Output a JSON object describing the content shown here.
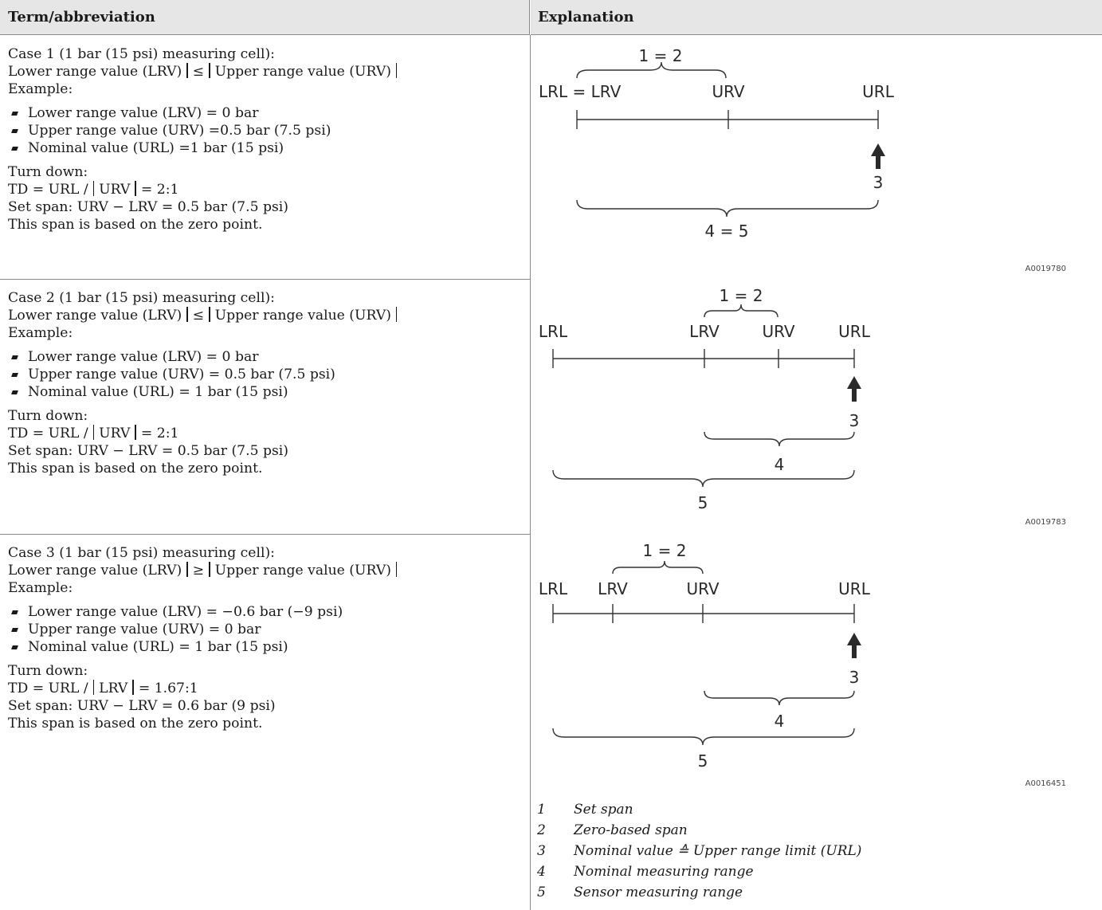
{
  "header": {
    "term_col": "Term/abbreviation",
    "explanation_col": "Explanation"
  },
  "cases": [
    {
      "title": "Case 1 (1 bar (15 psi) measuring cell):",
      "relation": {
        "left": "Lower range value (LRV)",
        "op": "≤",
        "right": "Upper range value (URV)"
      },
      "example_label": "Example:",
      "bullets": [
        "Lower range value (LRV) = 0 bar",
        "Upper range value (URV) =0.5 bar (7.5 psi)",
        "Nominal value (URL) =1 bar (15 psi)"
      ],
      "turn_down_label": "Turn down:",
      "td": {
        "prefix": "TD = URL /",
        "var": "URV",
        "suffix": "= 2:1"
      },
      "span": "Set span: URV − LRV = 0.5 bar (7.5 psi)",
      "note": "This span is based on the zero point."
    },
    {
      "title": "Case 2 (1 bar (15 psi) measuring cell):",
      "relation": {
        "left": "Lower range value (LRV)",
        "op": "≤",
        "right": "Upper range value (URV)"
      },
      "example_label": "Example:",
      "bullets": [
        "Lower range value (LRV) = 0 bar",
        "Upper range value (URV) = 0.5 bar (7.5 psi)",
        "Nominal value (URL) = 1 bar (15 psi)"
      ],
      "turn_down_label": "Turn down:",
      "td": {
        "prefix": "TD = URL /",
        "var": "URV",
        "suffix": "= 2:1"
      },
      "span": "Set span: URV − LRV = 0.5 bar (7.5 psi)",
      "note": "This span is based on the zero point."
    },
    {
      "title": "Case 3 (1 bar (15 psi) measuring cell):",
      "relation": {
        "left": "Lower range value (LRV)",
        "op": "≥",
        "right": "Upper range value (URV)"
      },
      "example_label": "Example:",
      "bullets": [
        "Lower range value (LRV) = −0.6 bar (−9 psi)",
        "Upper range value (URV) = 0 bar",
        "Nominal value (URL) = 1 bar (15 psi)"
      ],
      "turn_down_label": "Turn down:",
      "td": {
        "prefix": "TD = URL /",
        "var": "LRV",
        "suffix": "= 1.67:1"
      },
      "span": "Set span: URV − LRV = 0.6 bar (9 psi)",
      "note": "This span is based on the zero point."
    }
  ],
  "diagrams": [
    {
      "code": "A0019780",
      "labels": {
        "d1": "LRL = LRV",
        "d2": "URV",
        "d3": "URL",
        "brace_top": "1 = 2",
        "arrow": "3",
        "brace_bottom": "4 = 5"
      }
    },
    {
      "code": "A0019783",
      "labels": {
        "d1": "LRL",
        "d2": "LRV",
        "d3": "URV",
        "d4": "URL",
        "brace_top": "1 = 2",
        "arrow": "3",
        "brace_mid": "4",
        "brace_bottom": "5"
      }
    },
    {
      "code": "A0016451",
      "labels": {
        "d1": "LRL",
        "d2": "LRV",
        "d3": "URV",
        "d4": "URL",
        "brace_top": "1 = 2",
        "arrow": "3",
        "brace_mid": "4",
        "brace_bottom": "5"
      }
    }
  ],
  "legend": [
    {
      "num": "1",
      "text": "Set span"
    },
    {
      "num": "2",
      "text": "Zero-based span"
    },
    {
      "num": "3",
      "text": "Nominal value ≙ Upper range limit (URL)"
    },
    {
      "num": "4",
      "text": "Nominal measuring range"
    },
    {
      "num": "5",
      "text": "Sensor measuring range"
    }
  ]
}
